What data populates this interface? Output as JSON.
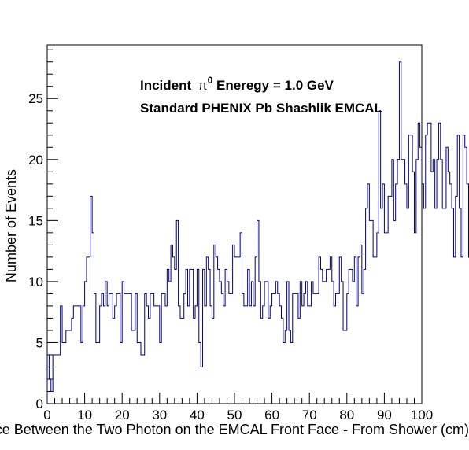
{
  "chart_data": {
    "type": "histogram-step",
    "title": "",
    "xlabel": "Distance Between the Two Photon on the EMCAL Front Face - From Shower (cm)",
    "ylabel": "Number of Events",
    "xlim": [
      0,
      100
    ],
    "ylim": [
      0,
      29.4
    ],
    "x_ticks": [
      "0",
      "10",
      "20",
      "30",
      "40",
      "50",
      "60",
      "70",
      "80",
      "90",
      "100"
    ],
    "y_ticks": [
      "0",
      "5",
      "10",
      "15",
      "20",
      "25"
    ],
    "bin_width": 0.5,
    "line_color": "#000080",
    "annotations": [
      "Incident   π⁰ Eneregy = 1.0 GeV",
      "Standard PHENIX Pb Shashlik EMCAL"
    ],
    "values": [
      4,
      2,
      1,
      4,
      4,
      4,
      4,
      8,
      5,
      5,
      6,
      6,
      6,
      7,
      8,
      8,
      8,
      8,
      5,
      8,
      10,
      12,
      12,
      17,
      14,
      9,
      5,
      5,
      8,
      9,
      8,
      10,
      8,
      9,
      9,
      7,
      8,
      9,
      9,
      5,
      10,
      9,
      9,
      9,
      9,
      6,
      6,
      9,
      5,
      5,
      4,
      4,
      9,
      8,
      7,
      9,
      9,
      8,
      8,
      8,
      5,
      9,
      9,
      8,
      11,
      10,
      13,
      12,
      11,
      15,
      8,
      7,
      7,
      9,
      11,
      8,
      11,
      11,
      7,
      8,
      11,
      5,
      3,
      11,
      8,
      12,
      11,
      8,
      7,
      13,
      12,
      11,
      10,
      9,
      8,
      11,
      10,
      9,
      9,
      13,
      12,
      12,
      12,
      14,
      9,
      8,
      8,
      11,
      8,
      10,
      8,
      12,
      15,
      10,
      7,
      8,
      10,
      10,
      7,
      8,
      9,
      9,
      10,
      9,
      8,
      7,
      5,
      6,
      10,
      6,
      5,
      9,
      9,
      9,
      7,
      10,
      8,
      9,
      10,
      8,
      8,
      10,
      9,
      9,
      9,
      12,
      11,
      10,
      10,
      11,
      11,
      12,
      10,
      8,
      9,
      9,
      12,
      10,
      6,
      6,
      9,
      11,
      11,
      10,
      12,
      8,
      12,
      13,
      9,
      11,
      16,
      18,
      15,
      15,
      12,
      12,
      14,
      24,
      16,
      18,
      14,
      14,
      17,
      17,
      20,
      15,
      18,
      20,
      28,
      20,
      20,
      18,
      16,
      22,
      22,
      19,
      14,
      20,
      23,
      21,
      18,
      16,
      22,
      23,
      23,
      19,
      20,
      16,
      20,
      23,
      20,
      16,
      16,
      21,
      19,
      18,
      16,
      12,
      17,
      22,
      16,
      12,
      22,
      21,
      18,
      12,
      18,
      18,
      20,
      16,
      12,
      8,
      15,
      11,
      8,
      15,
      13,
      14,
      6,
      13,
      12,
      11,
      10,
      12,
      10,
      6,
      11,
      7,
      12,
      6,
      8,
      10,
      13,
      8,
      4,
      11,
      10,
      10,
      8,
      9,
      8,
      8,
      8,
      5,
      10,
      12,
      8,
      10,
      7,
      10,
      9,
      9,
      10,
      8,
      7,
      5,
      5,
      6,
      5,
      5,
      5,
      7,
      6,
      8,
      7,
      5,
      5,
      2,
      7,
      5,
      2,
      6,
      5,
      4,
      6,
      8,
      6,
      7,
      5,
      4,
      2,
      5,
      7,
      6,
      4,
      3,
      2,
      3,
      1,
      2,
      6,
      3,
      4,
      1,
      1,
      4,
      4,
      5,
      6,
      3,
      3,
      6,
      5,
      3,
      3,
      3,
      3,
      4,
      3,
      2,
      1,
      1,
      2,
      3,
      2,
      1,
      2,
      2,
      2,
      1,
      1,
      1,
      1,
      1,
      1,
      1,
      1,
      1,
      2,
      1,
      1,
      3,
      2,
      1,
      1,
      1,
      2,
      1,
      1,
      4,
      3,
      2,
      1,
      2,
      2,
      3,
      1,
      1,
      1,
      2,
      1,
      1,
      2,
      3,
      3,
      3,
      3,
      2,
      1,
      1,
      1,
      1,
      1,
      1,
      1,
      1,
      3,
      3
    ]
  }
}
